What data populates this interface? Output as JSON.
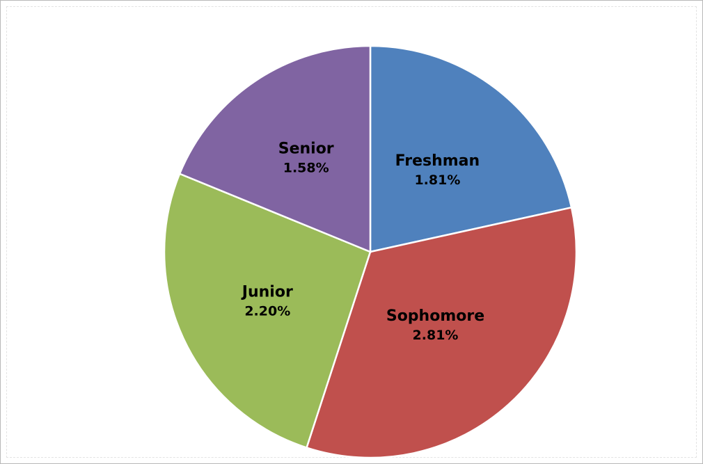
{
  "chart_data": {
    "type": "pie",
    "title": "",
    "categories": [
      "Freshman",
      "Sophomore",
      "Junior",
      "Senior"
    ],
    "values": [
      1.81,
      2.81,
      2.2,
      1.58
    ],
    "value_labels": [
      "1.81%",
      "2.81%",
      "2.20%",
      "1.58%"
    ],
    "colors": [
      "#4F81BD",
      "#C0504D",
      "#9BBB59",
      "#8064A2"
    ],
    "start_angle_deg_clockwise_from_top": 0,
    "legend": "none",
    "data_labels": "inside"
  }
}
